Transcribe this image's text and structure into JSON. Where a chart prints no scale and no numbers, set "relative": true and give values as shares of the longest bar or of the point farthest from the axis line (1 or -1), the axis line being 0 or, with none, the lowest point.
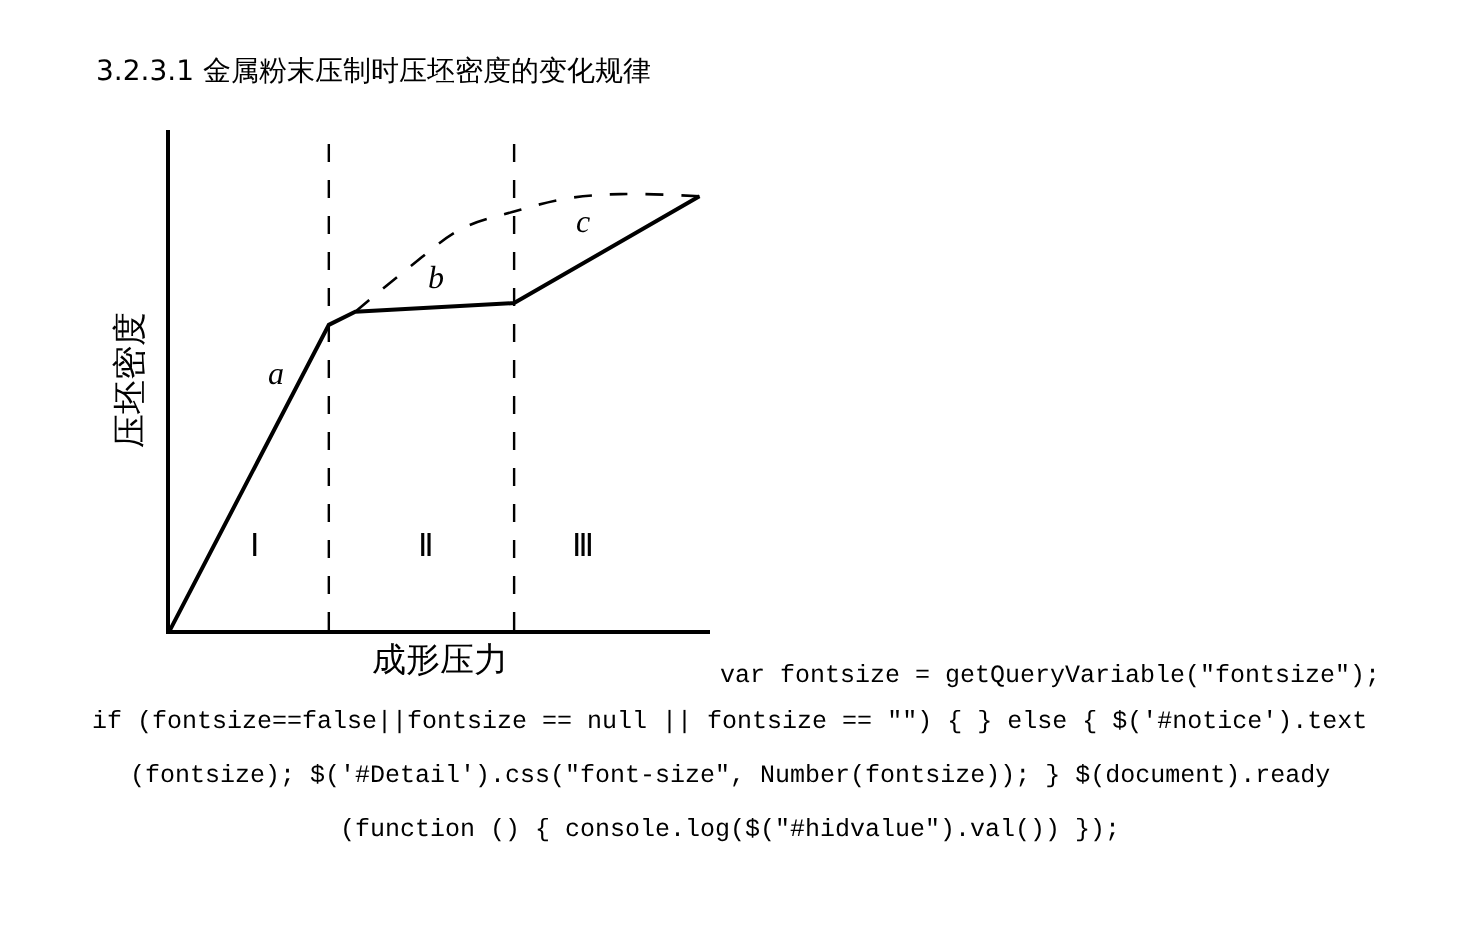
{
  "chart_data": {
    "type": "line",
    "relative": true,
    "title": "3.2.3.1 金属粉末压制时压坯密度的变化规律",
    "xlabel": "成形压力",
    "ylabel": "压坯密度",
    "categories": [
      null,
      null,
      null,
      null,
      null,
      null,
      null,
      null,
      null,
      null,
      null,
      null,
      null,
      null,
      null,
      null,
      null,
      null,
      null,
      null,
      null
    ],
    "series": [
      {
        "color": "#000000",
        "line_style": "solid",
        "values": [
          0,
          null,
          null,
          null,
          null,
          null,
          0.7,
          0.73,
          null,
          null,
          null,
          null,
          null,
          0.75,
          null,
          null,
          null,
          null,
          null,
          null,
          0.995
        ]
      },
      {
        "color": "#000000",
        "line_style": "dashed",
        "values": [
          null,
          null,
          null,
          null,
          null,
          null,
          null,
          0.73,
          null,
          0.83,
          null,
          0.92,
          null,
          0.96,
          null,
          0.99,
          null,
          1.0,
          null,
          null,
          0.995
        ]
      }
    ],
    "annotations": [
      "a",
      "b",
      "c",
      "Ⅰ",
      "Ⅱ",
      "Ⅲ",
      "var fontsize = getQueryVariable(\"fontsize\");",
      "if (fontsize==false||fontsize == null || fontsize == \"\") { } else { $('#notice').text",
      "(fontsize); $('#Detail').css(\"font-size\", Number(fontsize)); } $(document).ready",
      "(function () { console.log($(\"#hidvalue\").val()) });"
    ],
    "marker": "none",
    "tick_labels": false
  }
}
